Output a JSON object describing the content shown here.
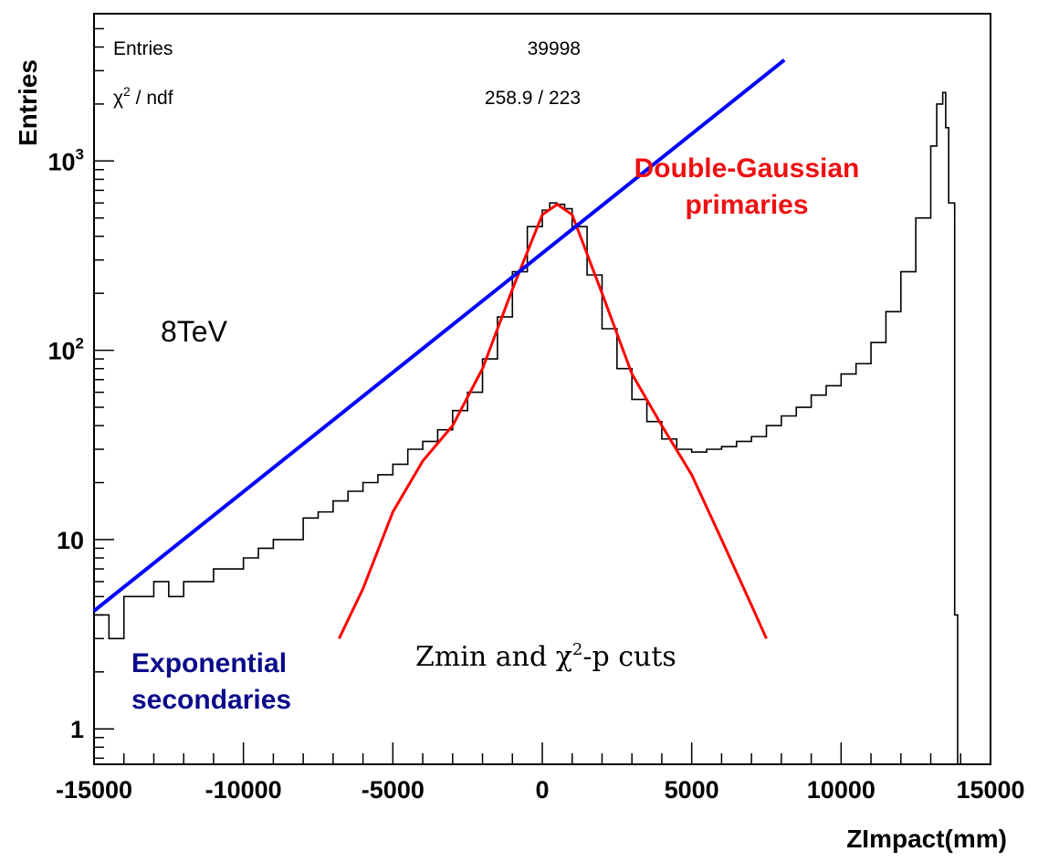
{
  "chart_data": {
    "type": "line",
    "scale": {
      "y": "log"
    },
    "xlabel": "ZImpact(mm)",
    "ylabel": "Entries",
    "xlim": [
      -15000,
      15000
    ],
    "ylim": [
      0.65,
      6000
    ],
    "x_ticks": [
      -15000,
      -10000,
      -5000,
      0,
      5000,
      10000,
      15000
    ],
    "x_tick_labels": [
      "-15000",
      "-10000",
      "-5000",
      "0",
      "5000",
      "10000",
      "15000"
    ],
    "y_ticks": [
      1,
      10,
      100,
      1000
    ],
    "y_tick_labels": [
      {
        "base": "1",
        "exp": ""
      },
      {
        "base": "10",
        "exp": ""
      },
      {
        "base": "10",
        "exp": "2"
      },
      {
        "base": "10",
        "exp": "3"
      }
    ],
    "stats": {
      "entries_label": "Entries",
      "entries_value": "39998",
      "chi2_label": "χ",
      "chi2_sup": "2",
      "chi2_rest": " / ndf",
      "chi2_value": "258.9 / 223"
    },
    "annotations": {
      "energy": "8TeV",
      "primaries_line1": "Double-Gaussian",
      "primaries_line2": "primaries",
      "secondaries_line1": "Exponential",
      "secondaries_line2": "secondaries",
      "cuts_a": "Zmin and χ",
      "cuts_sup": "2",
      "cuts_b": "-p cuts"
    },
    "series": [
      {
        "kind": "histogram",
        "color": "#000000",
        "x": [
          -15000,
          -14500,
          -14000,
          -13500,
          -13000,
          -12500,
          -12000,
          -11500,
          -11000,
          -10500,
          -10000,
          -9500,
          -9000,
          -8500,
          -8000,
          -7500,
          -7000,
          -6500,
          -6000,
          -5500,
          -5000,
          -4500,
          -4000,
          -3500,
          -3000,
          -2500,
          -2000,
          -1500,
          -1000,
          -500,
          0,
          250,
          500,
          750,
          1000,
          1500,
          2000,
          2500,
          3000,
          3500,
          4000,
          4500,
          5000,
          5500,
          6000,
          6500,
          7000,
          7500,
          8000,
          8500,
          9000,
          9500,
          10000,
          10500,
          11000,
          11500,
          12000,
          12500,
          13000,
          13200,
          13400,
          13500,
          13600,
          13800
        ],
        "y": [
          4,
          3,
          5,
          5,
          6,
          5,
          6,
          6,
          7,
          7,
          8,
          9,
          10,
          10,
          13,
          14,
          16,
          18,
          20,
          22,
          25,
          30,
          33,
          38,
          48,
          60,
          90,
          150,
          260,
          450,
          550,
          600,
          590,
          560,
          450,
          250,
          130,
          80,
          55,
          42,
          34,
          30,
          29,
          30,
          31,
          33,
          35,
          40,
          45,
          50,
          58,
          65,
          75,
          85,
          110,
          160,
          260,
          500,
          1200,
          2000,
          2300,
          1500,
          600,
          4
        ],
        "x_end": 13900
      },
      {
        "name": "",
        "kind": "curve",
        "color": "#ff0000",
        "x": [
          -6800,
          -6000,
          -5000,
          -4000,
          -3000,
          -2000,
          -1000,
          0,
          500,
          1000,
          2000,
          3000,
          4000,
          5000,
          6000,
          7000,
          7500
        ],
        "y": [
          3,
          5.5,
          14,
          26,
          40,
          80,
          210,
          520,
          590,
          520,
          200,
          75,
          40,
          22,
          10,
          4.5,
          3
        ]
      },
      {
        "name": "",
        "kind": "curve",
        "color": "#0000ff",
        "x": [
          -15000,
          -8000
        ],
        "y": [
          4.2,
          32
        ],
        "x_full": [
          -15000,
          8100
        ]
      }
    ]
  }
}
